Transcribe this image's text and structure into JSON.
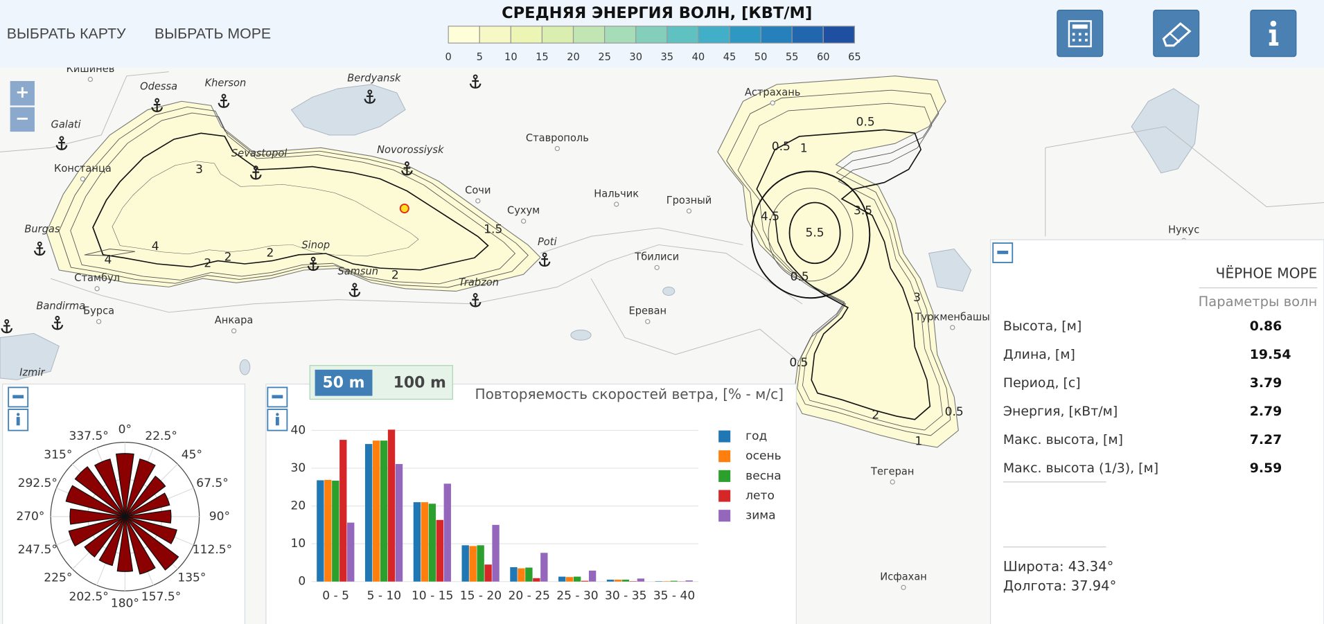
{
  "header": {
    "nav": [
      "ВЫБРАТЬ КАРТУ",
      "ВЫБРАТЬ МОРЕ"
    ],
    "legend": {
      "title": "СРЕДНЯЯ ЭНЕРГИЯ ВОЛН, [КВТ/М]",
      "ticks": [
        0,
        5,
        10,
        15,
        20,
        25,
        30,
        35,
        40,
        45,
        50,
        55,
        60,
        65
      ],
      "colors": [
        "#fefed8",
        "#f6f9c6",
        "#ecf5b3",
        "#daefaf",
        "#c1e6b3",
        "#a6dcb8",
        "#84cfbb",
        "#60c1c1",
        "#41afc7",
        "#2e97c2",
        "#2580bb",
        "#2266ae",
        "#1f4fa0"
      ]
    }
  },
  "map": {
    "zoom": [
      "+",
      "−"
    ],
    "places": [
      "Кишинев",
      "Odessa",
      "Kherson",
      "Berdyansk",
      "Астрахань",
      "Ставрополь",
      "Galati",
      "Sevastopol",
      "Novorossiysk",
      "Констанца",
      "Сочи",
      "Нальчик",
      "Грозный",
      "Сухум",
      "Burgas",
      "Poti",
      "Sinop",
      "Samsun",
      "Стамбул",
      "Trabzon",
      "Тбилиси",
      "Bandirma",
      "Бурса",
      "Ереван",
      "Анкара",
      "Туркменбашы",
      "Нукус",
      "Izmir",
      "Тегеран",
      "Исфахан"
    ],
    "contour_labels": [
      "3",
      "4",
      "4",
      "2",
      "2",
      "2",
      "1.5",
      "2",
      "0.5",
      "0.5",
      "1",
      "5.5",
      "4.5",
      "3.5",
      "0.5",
      "3",
      "2",
      "0.5",
      "1",
      "0.5"
    ]
  },
  "info_panel": {
    "title": "ЧЁРНОЕ МОРЕ",
    "subtitle": "Параметры волн",
    "rows": [
      [
        "Высота, [м]",
        0.86
      ],
      [
        "Длина, [м]",
        19.54
      ],
      [
        "Период, [с]",
        3.79
      ],
      [
        "Энергия, [кВт/м]",
        2.79
      ],
      [
        "Макс. высота, [м]",
        7.27
      ],
      [
        "Макс. высота (1/3), [м]",
        9.59
      ]
    ],
    "latitude": "Широта: 43.34°",
    "longitude": "Долгота: 37.94°"
  },
  "tabs": [
    "50 m",
    "100 m"
  ],
  "chart_data": [
    {
      "type": "bar",
      "title": "Повторяемость скоростей ветра, [% - м/с]",
      "categories": [
        "0 - 5",
        "5 - 10",
        "10 - 15",
        "15 - 20",
        "20 - 25",
        "25 - 30",
        "30 - 35",
        "35 - 40"
      ],
      "series": [
        {
          "name": "год",
          "color": "#1f77b4",
          "values": [
            26.8,
            36.4,
            21.0,
            9.6,
            3.8,
            1.3,
            0.5,
            0.1
          ]
        },
        {
          "name": "осень",
          "color": "#ff7f0e",
          "values": [
            26.9,
            37.3,
            21.0,
            9.4,
            3.5,
            1.2,
            0.5,
            0.1
          ]
        },
        {
          "name": "весна",
          "color": "#2ca02c",
          "values": [
            26.7,
            37.3,
            20.6,
            9.6,
            3.7,
            1.3,
            0.5,
            0.2
          ]
        },
        {
          "name": "лето",
          "color": "#d62728",
          "values": [
            37.5,
            40.2,
            16.3,
            4.5,
            0.9,
            0.2,
            0.1,
            0.05
          ]
        },
        {
          "name": "зима",
          "color": "#9467bd",
          "values": [
            15.6,
            31.1,
            25.9,
            15.0,
            7.6,
            2.9,
            0.8,
            0.3
          ]
        }
      ],
      "ylim": [
        0,
        44
      ],
      "yticks": [
        0,
        10,
        20,
        30,
        40
      ],
      "grid": true,
      "legend": "right"
    },
    {
      "type": "polar_bar",
      "categories": [
        "0°",
        "22.5°",
        "45°",
        "67.5°",
        "90°",
        "112.5°",
        "135°",
        "157.5°",
        "180°",
        "202.5°",
        "225°",
        "247.5°",
        "270°",
        "292.5°",
        "315°",
        "337.5°"
      ],
      "values": [
        85,
        80,
        68,
        62,
        62,
        72,
        90,
        80,
        74,
        68,
        68,
        78,
        74,
        82,
        84,
        80
      ],
      "color": "#8b0000",
      "rlim": [
        0,
        100
      ],
      "rticks": [
        50
      ]
    }
  ]
}
